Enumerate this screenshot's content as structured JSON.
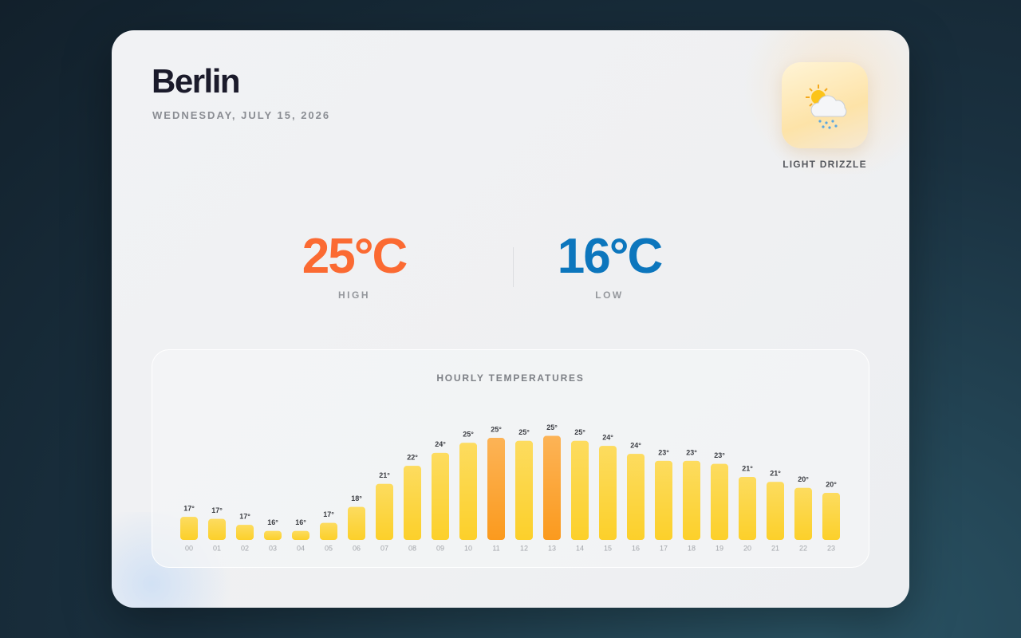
{
  "header": {
    "city": "Berlin",
    "date": "WEDNESDAY, JULY 15, 2026"
  },
  "condition": "LIGHT DRIZZLE",
  "summary": {
    "high": "25°C",
    "high_label": "HIGH",
    "low": "16°C",
    "low_label": "LOW"
  },
  "chart_data": {
    "type": "bar",
    "title": "HOURLY TEMPERATURES",
    "categories": [
      "00",
      "01",
      "02",
      "03",
      "04",
      "05",
      "06",
      "07",
      "08",
      "09",
      "10",
      "11",
      "12",
      "13",
      "14",
      "15",
      "16",
      "17",
      "18",
      "19",
      "20",
      "21",
      "22",
      "23"
    ],
    "values": [
      17.3,
      17.1,
      16.5,
      15.9,
      15.9,
      16.7,
      18.3,
      20.6,
      22.4,
      23.7,
      24.7,
      25.2,
      24.9,
      25.4,
      24.9,
      24.4,
      23.6,
      22.9,
      22.9,
      22.6,
      21.3,
      20.8,
      20.2,
      19.7
    ],
    "value_labels": [
      "17°",
      "17°",
      "17°",
      "16°",
      "16°",
      "17°",
      "18°",
      "21°",
      "22°",
      "24°",
      "25°",
      "25°",
      "25°",
      "25°",
      "25°",
      "24°",
      "24°",
      "23°",
      "23°",
      "23°",
      "21°",
      "21°",
      "20°",
      "20°"
    ],
    "colors": [
      "#fcd02a",
      "#fcd02a",
      "#fcd02a",
      "#fcd02a",
      "#fcd02a",
      "#fcd02a",
      "#fcd02a",
      "#fcd02a",
      "#fcd02a",
      "#fcd02a",
      "#fcd02a",
      "#fb9a1e",
      "#fcd02a",
      "#fb9a1e",
      "#fcd02a",
      "#fcd02a",
      "#fcd02a",
      "#fcd02a",
      "#fcd02a",
      "#fcd02a",
      "#fcd02a",
      "#fcd02a",
      "#fcd02a",
      "#fcd02a"
    ],
    "ylim": [
      15,
      26
    ]
  }
}
